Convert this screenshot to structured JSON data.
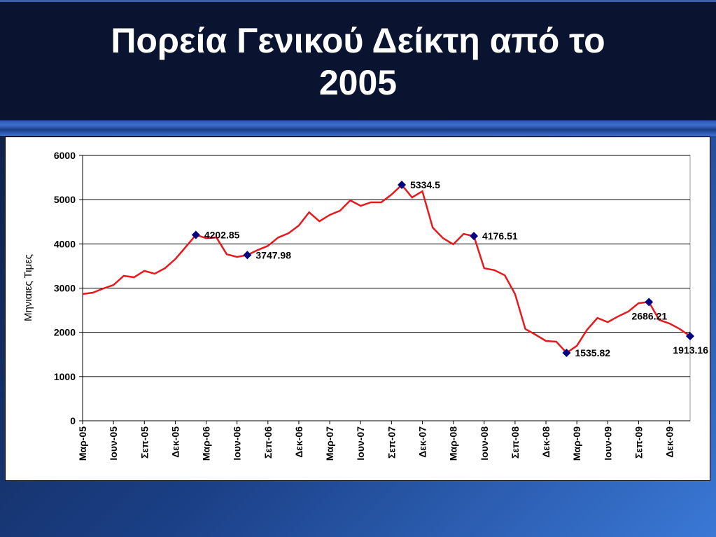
{
  "chart_data": {
    "type": "line",
    "title": "Πορεία Γενικού Δείκτη από το 2005",
    "y_label": "Μηνιαιες Τιμες",
    "categories": [
      "Μαρ-05",
      null,
      null,
      "Ιουν-05",
      null,
      null,
      "Σεπ-05",
      null,
      null,
      "Δεκ-05",
      null,
      null,
      "Μαρ-06",
      null,
      null,
      "Ιουν-06",
      null,
      null,
      "Σεπ-06",
      null,
      null,
      "Δεκ-06",
      null,
      null,
      "Μαρ-07",
      null,
      null,
      "Ιουν-07",
      null,
      null,
      "Σεπ-07",
      null,
      null,
      "Δεκ-07",
      null,
      null,
      "Μαρ-08",
      null,
      null,
      "Ιουν-08",
      null,
      null,
      "Σεπ-08",
      null,
      null,
      "Δεκ-08",
      null,
      null,
      "Μαρ-09",
      null,
      null,
      "Ιουν-09",
      null,
      null,
      "Σεπ-09",
      null,
      null,
      "Δεκ-09",
      null,
      null
    ],
    "series": [
      {
        "color": "#e8191c",
        "values": [
          2865,
          2897,
          2990,
          3070,
          3277,
          3245,
          3390,
          3325,
          3450,
          3655,
          3925,
          4202.85,
          4130,
          4145,
          3765,
          3705,
          3747.98,
          3860,
          3955,
          4145,
          4240,
          4415,
          4715,
          4510,
          4655,
          4750,
          4985,
          4860,
          4940,
          4940,
          5115,
          5334.5,
          5050,
          5190,
          4370,
          4130,
          3990,
          4225,
          4176.51,
          3450,
          3405,
          3290,
          2865,
          2075,
          1945,
          1805,
          1790,
          1535.82,
          1695,
          2060,
          2325,
          2230,
          2360,
          2470,
          2660,
          2686.21,
          2280,
          2200,
          2075,
          1913.16
        ]
      },
      {
        "color": "#000080",
        "marker": "diamond",
        "values": [
          null,
          null,
          null,
          null,
          null,
          null,
          null,
          null,
          null,
          null,
          null,
          4202.85,
          null,
          null,
          null,
          null,
          3747.98,
          null,
          null,
          null,
          null,
          null,
          null,
          null,
          null,
          null,
          null,
          null,
          null,
          null,
          null,
          5334.5,
          null,
          null,
          null,
          null,
          null,
          null,
          4176.51,
          null,
          null,
          null,
          null,
          null,
          null,
          null,
          null,
          1535.82,
          null,
          null,
          null,
          null,
          null,
          null,
          null,
          2686.21,
          null,
          null,
          null,
          1913.16
        ]
      }
    ],
    "ylim": [
      0,
      6000
    ],
    "yticks": [
      0,
      1000,
      2000,
      3000,
      4000,
      5000,
      6000
    ],
    "grid": true
  }
}
